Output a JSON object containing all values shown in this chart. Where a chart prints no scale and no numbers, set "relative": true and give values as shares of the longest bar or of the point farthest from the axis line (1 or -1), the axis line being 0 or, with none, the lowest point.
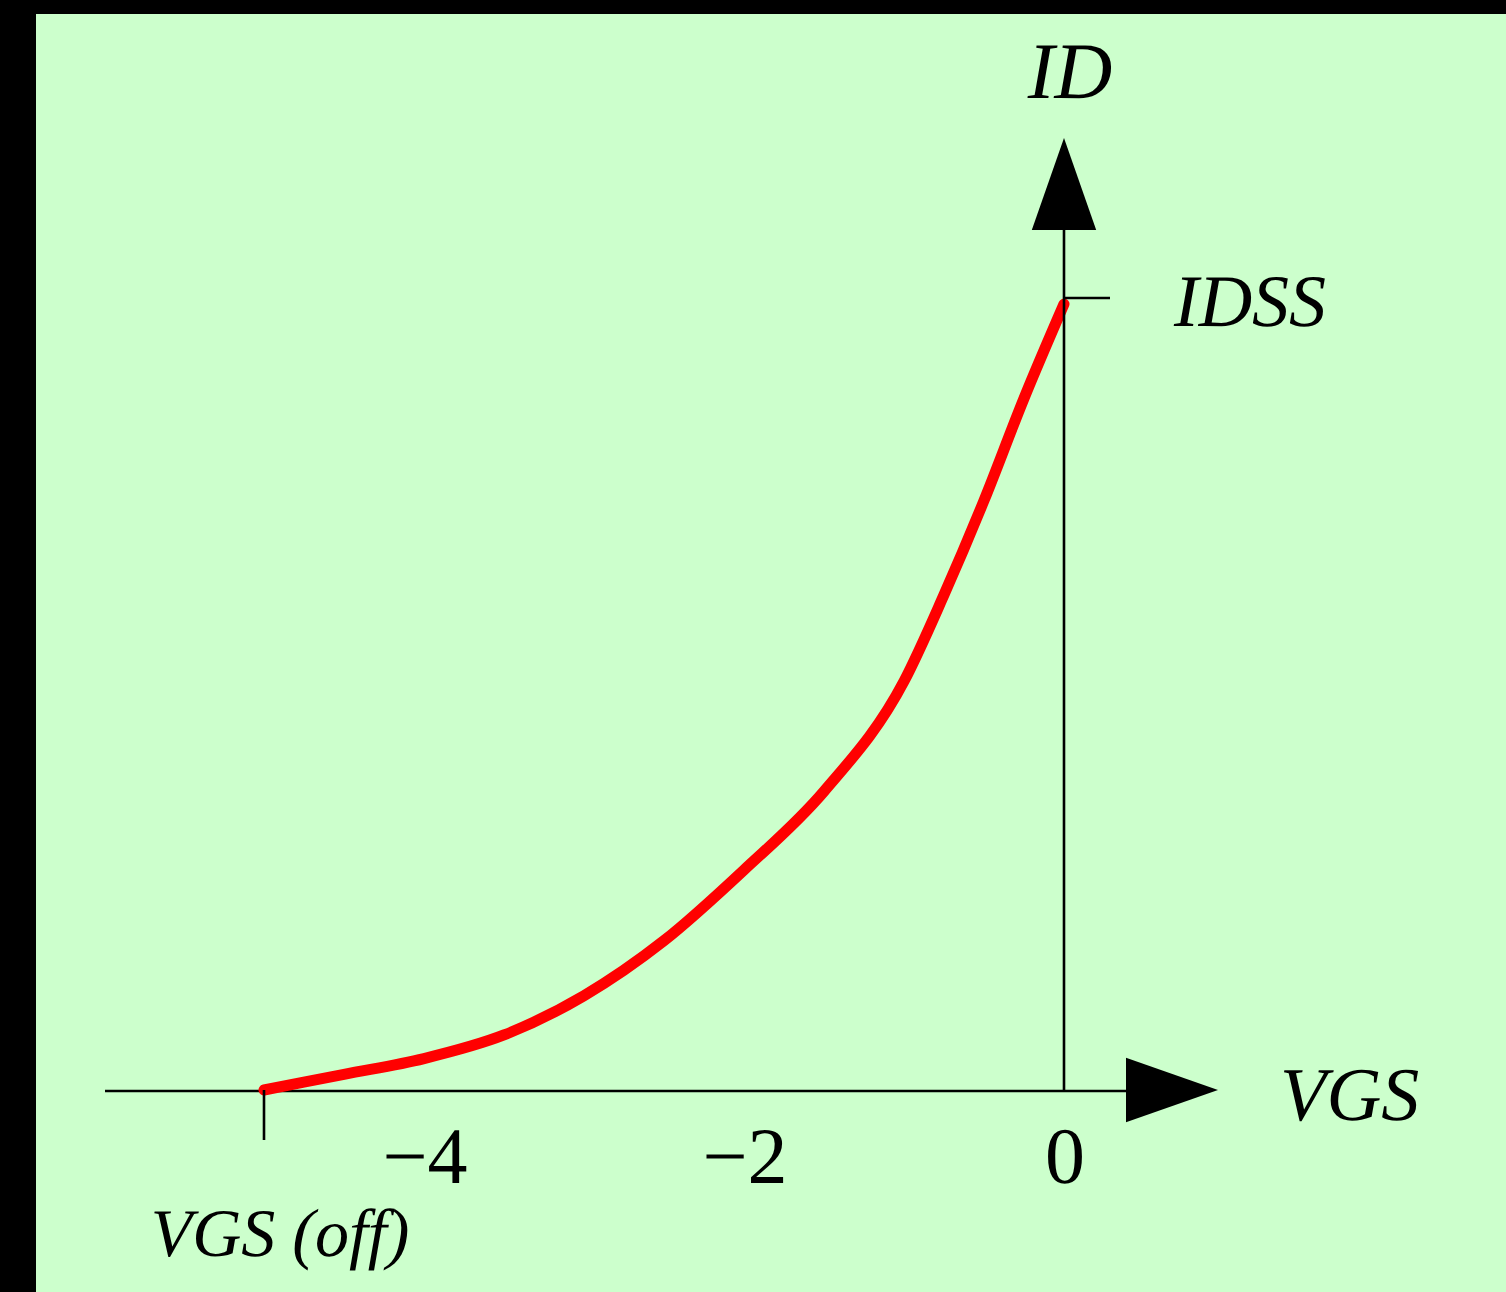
{
  "chart_data": {
    "type": "line",
    "xlabel": "VGS",
    "ylabel": "ID",
    "relative": true,
    "x": [
      -5,
      -4.5,
      -4,
      -3.5,
      -3,
      -2.5,
      -2,
      -1.5,
      -1,
      -0.75,
      -0.5,
      -0.25,
      0
    ],
    "series": [
      {
        "color": "#ff0000",
        "values": [
          0,
          0.02,
          0.04,
          0.07,
          0.12,
          0.19,
          0.28,
          0.38,
          0.52,
          0.63,
          0.75,
          0.88,
          1
        ]
      }
    ],
    "xlim": [
      -6,
      0.4
    ],
    "xticks": [
      -4,
      -2,
      0
    ],
    "annotations": [
      {
        "text": "IDSS",
        "x": 0,
        "y": 1
      },
      {
        "text": "VGS (off)",
        "x": -5,
        "y": 0
      }
    ],
    "line_style": "solid"
  }
}
